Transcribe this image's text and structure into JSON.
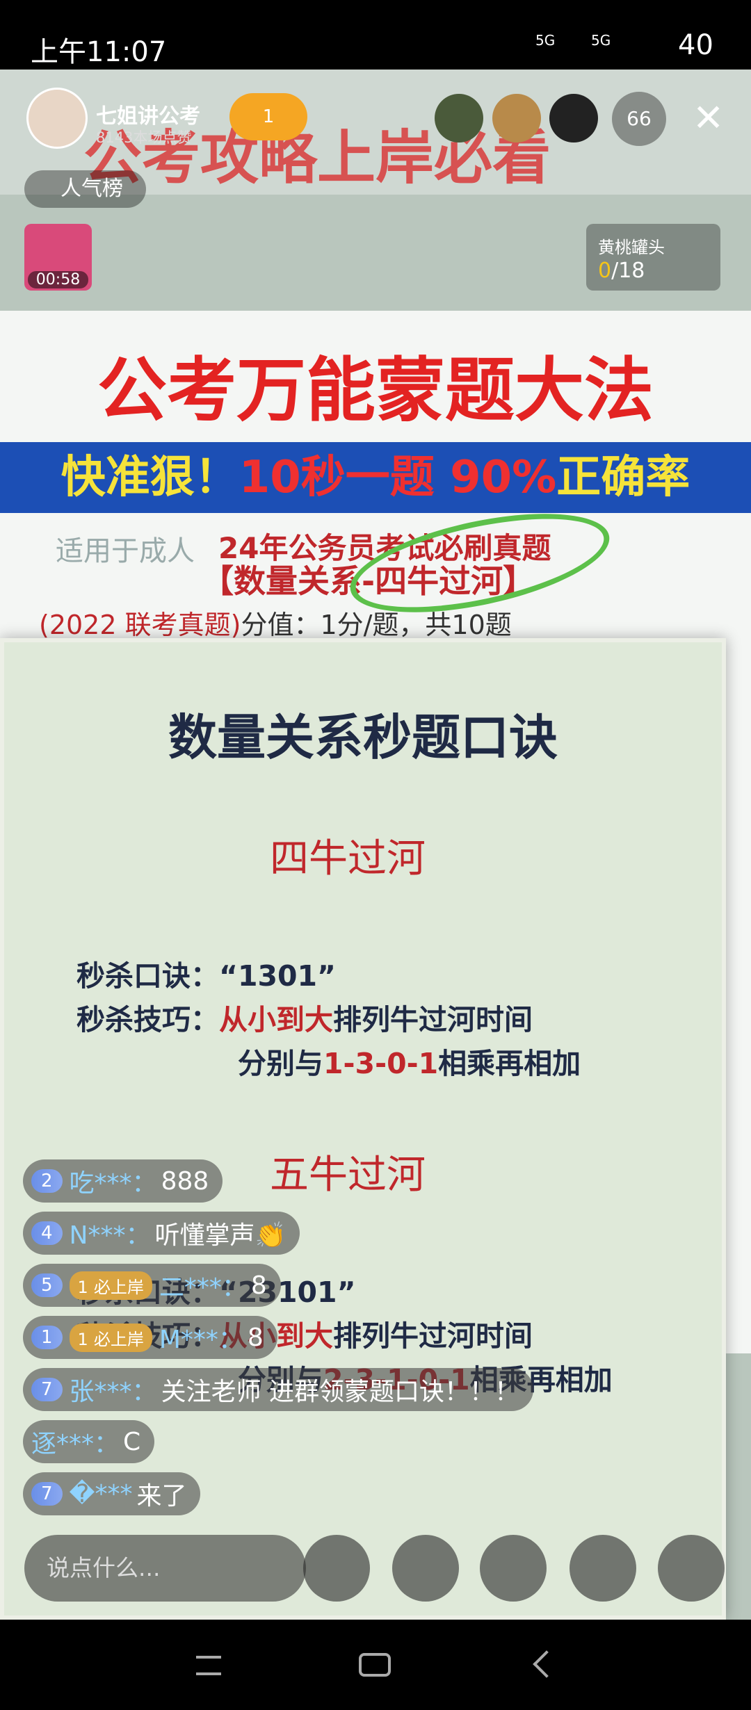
{
  "status_bar": {
    "time": "上午11:07",
    "network_1": "5G",
    "network_2": "5G",
    "battery": "40"
  },
  "header": {
    "host_name": "七姐讲公考",
    "likes": "8143本场点赞",
    "fan_badge": "1",
    "viewer_count": "66",
    "popularity": "人气榜",
    "red_packet_timer": "00:58",
    "task_name": "黄桃罐头",
    "task_progress": "0",
    "task_total": "/18"
  },
  "stream": {
    "top_banner": "公考攻略上岸必看",
    "poster_title": "公考万能蒙题大法",
    "slogan": [
      "快准狠！",
      "10秒一题",
      "90%",
      "正确率"
    ],
    "audience": "适用于成人",
    "exam": "24年公务员考试必刷真题",
    "topic": "【数量关系-四牛过河】",
    "source": "(2022 联考真题)",
    "score": "分值：1分/题，共10题",
    "card_title": "数量关系秒题口诀",
    "sections": [
      {
        "heading": "四牛过河",
        "formula_label": "秒杀口诀：",
        "formula": "“1301”",
        "tip_label": "秒杀技巧：",
        "tip_red": "从小到大",
        "tip_rest": "排列牛过河时间",
        "tip2_a": "分别与",
        "tip2_red": "1-3-0-1",
        "tip2_b": "相乘再相加"
      },
      {
        "heading": "五牛过河",
        "formula_label": "秒杀口诀：",
        "formula": "“23101”",
        "tip_label": "秒杀技巧：",
        "tip_red": "从小到大",
        "tip_rest": "排列牛过河时间",
        "tip2_a": "分别与",
        "tip2_red": "2-3-1-0-1",
        "tip2_b": "相乘再相加"
      }
    ]
  },
  "comments": [
    {
      "level": "2",
      "user": "吃***：",
      "text": "888"
    },
    {
      "level": "4",
      "user": "N***：",
      "text": "听懂掌声👏"
    },
    {
      "level": "5",
      "badge_level": "1",
      "badge": "必上岸",
      "user": "二***：",
      "text": "8"
    },
    {
      "level": "1",
      "badge_level": "1",
      "badge": "必上岸",
      "user": "M***：",
      "text": "8"
    },
    {
      "level": "7",
      "user": "张***：",
      "text": "关注老师 进群领蒙题口诀！！！"
    },
    {
      "user": "逐***：",
      "text": "C"
    },
    {
      "level": "7",
      "user": "�***",
      "text": "来了"
    }
  ],
  "input_bar": {
    "placeholder": "说点什么..."
  }
}
